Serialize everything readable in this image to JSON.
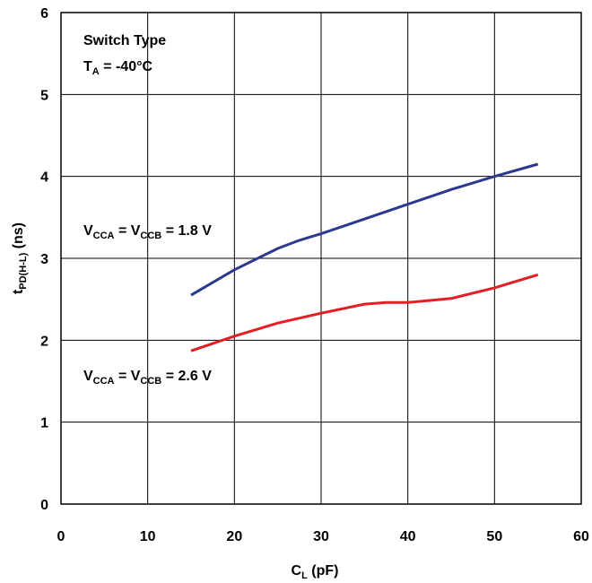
{
  "chart_data": {
    "type": "line",
    "title": "",
    "xlabel": {
      "main": "C",
      "sub": "L",
      "rest": " (pF)"
    },
    "ylabel": {
      "main": "t",
      "sub": "PD(H-L)",
      "rest": " (ns)"
    },
    "xlim": [
      0,
      60
    ],
    "ylim": [
      0,
      6
    ],
    "xticks": [
      0,
      10,
      20,
      30,
      40,
      50,
      60
    ],
    "yticks": [
      0,
      1,
      2,
      3,
      4,
      5,
      6
    ],
    "grid": true,
    "header_annotation": {
      "line1": "Switch Type",
      "line2_main": "T",
      "line2_sub": "A",
      "line2_rest": " = -40°C"
    },
    "series": [
      {
        "color": "#2b3a8f",
        "label_parts": {
          "a": "V",
          "a_sub": "CCA",
          "mid": " = V",
          "b_sub": "CCB",
          "rest": " = 1.8 V"
        },
        "x": [
          15,
          20,
          25,
          27.5,
          30,
          35,
          40,
          45,
          50,
          55
        ],
        "y": [
          2.55,
          2.86,
          3.12,
          3.22,
          3.3,
          3.48,
          3.66,
          3.84,
          4.0,
          4.15
        ]
      },
      {
        "color": "#e31e24",
        "label_parts": {
          "a": "V",
          "a_sub": "CCA",
          "mid": " = V",
          "b_sub": "CCB",
          "rest": " = 2.6 V"
        },
        "x": [
          15,
          20,
          25,
          30,
          35,
          37.5,
          40,
          45,
          50,
          55
        ],
        "y": [
          1.87,
          2.05,
          2.21,
          2.33,
          2.44,
          2.46,
          2.46,
          2.51,
          2.64,
          2.8
        ]
      }
    ]
  }
}
